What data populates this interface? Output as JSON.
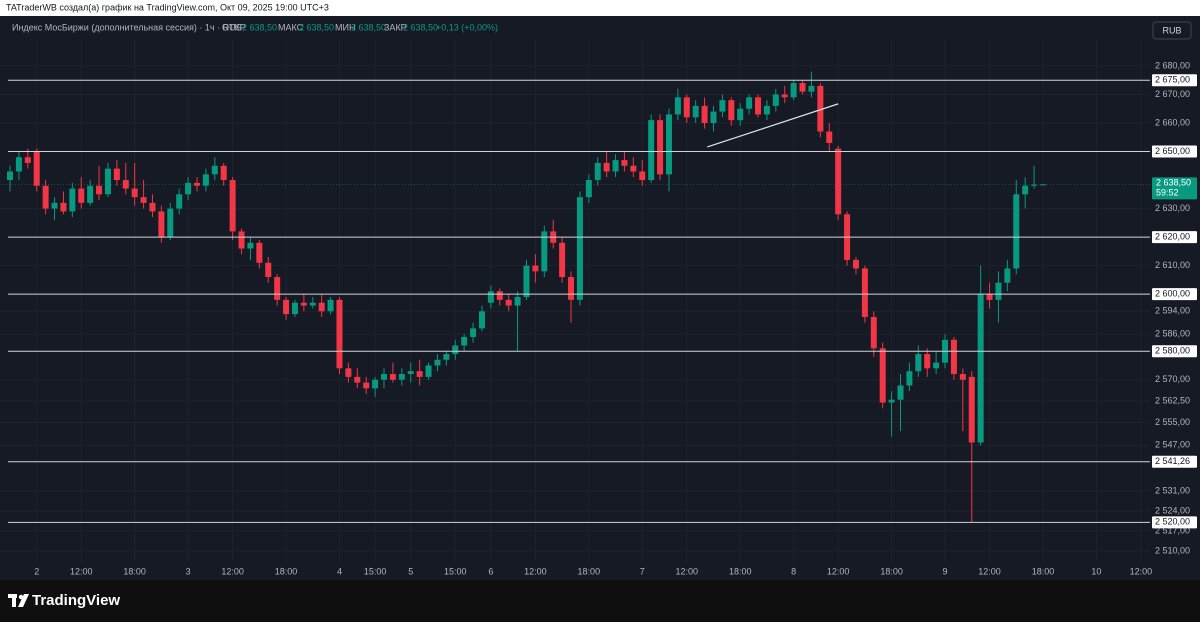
{
  "topbar": "TATraderWB создал(а) график на TradingView.com, Окт 09, 2025 19:00 UTC+3",
  "header": {
    "symbol": "Индекс МосБиржи (дополнительная сессия) · 1ч · RUS",
    "open_label": "ОТКР",
    "open": "2 638,50",
    "high_label": "МАКС",
    "high": "2 638,50",
    "low_label": "МИН",
    "low": "2 638,50",
    "close_label": "ЗАКР",
    "close": "2 638,50",
    "change": "+0,13 (+0,00%)"
  },
  "currency": "RUB",
  "footer": {
    "brand": "TradingView"
  },
  "chart_data": {
    "type": "candlestick",
    "categories": [
      null,
      null,
      null,
      "2",
      null,
      null,
      null,
      null,
      "12:00",
      null,
      null,
      null,
      null,
      null,
      "18:00",
      null,
      null,
      null,
      null,
      null,
      "3",
      null,
      null,
      null,
      null,
      "12:00",
      null,
      null,
      null,
      null,
      null,
      "18:00",
      null,
      null,
      null,
      null,
      null,
      "4",
      null,
      null,
      null,
      "15:00",
      null,
      null,
      null,
      "5",
      null,
      null,
      null,
      null,
      "15:00",
      null,
      null,
      null,
      "6",
      null,
      null,
      null,
      null,
      "12:00",
      null,
      null,
      null,
      null,
      null,
      "18:00",
      null,
      null,
      null,
      null,
      null,
      "7",
      null,
      null,
      null,
      null,
      "12:00",
      null,
      null,
      null,
      null,
      null,
      "18:00",
      null,
      null,
      null,
      null,
      null,
      "8",
      null,
      null,
      null,
      null,
      "12:00",
      null,
      null,
      null,
      null,
      null,
      "18:00",
      null,
      null,
      null,
      null,
      null,
      "9",
      null,
      null,
      null,
      null,
      "12:00",
      null,
      null,
      null,
      null,
      null,
      "18:00",
      null,
      null,
      null,
      null,
      null,
      "10",
      null,
      null,
      null,
      null,
      "12:00"
    ],
    "open": [
      2640,
      2643,
      2648,
      2650,
      2638,
      2630,
      2632,
      2629,
      2637,
      2632,
      2638,
      2635,
      2644,
      2640,
      2637,
      2634,
      2632,
      2629,
      2620,
      2630,
      2635,
      2639,
      2638,
      2642,
      2645,
      2640,
      2622,
      2616,
      2618,
      2611,
      2606,
      2598,
      2593,
      2597,
      2596,
      2597,
      2594,
      2598,
      2574,
      2571,
      2569,
      2567,
      2570,
      2572,
      2570,
      2572,
      2573,
      2571,
      2575,
      2577,
      2579,
      2582,
      2585,
      2588,
      2597,
      2601,
      2598,
      2596,
      2599,
      2610,
      2608,
      2622,
      2618,
      2606,
      2598,
      2634,
      2640,
      2646,
      2643,
      2647,
      2645,
      2643,
      2640,
      2661,
      2642,
      2663,
      2669,
      2662,
      2666,
      2660,
      2664,
      2668,
      2661,
      2665,
      2669,
      2663,
      2666,
      2670,
      2669,
      2674,
      2671,
      2673,
      2657,
      2651,
      2628,
      2612,
      2609,
      2592,
      2581,
      2562,
      2563,
      2568,
      2573,
      2579,
      2574,
      2576,
      2584,
      2572,
      2571,
      2548,
      2600,
      2598,
      2604,
      2609,
      2635,
      2638,
      2638.5,
      null,
      null,
      null,
      null,
      null,
      null,
      null,
      null,
      null,
      null,
      null
    ],
    "high": [
      2645,
      2650,
      2651,
      2651,
      2640,
      2634,
      2636,
      2639,
      2641,
      2640,
      2645,
      2646,
      2647,
      2646,
      2646,
      2640,
      2635,
      2631,
      2632,
      2637,
      2641,
      2641,
      2644,
      2648,
      2646,
      2641,
      2623,
      2620,
      2619,
      2613,
      2607,
      2599,
      2598,
      2600,
      2599,
      2600,
      2599,
      2599,
      2576,
      2574,
      2571,
      2571,
      2574,
      2576,
      2574,
      2576,
      2577,
      2576,
      2579,
      2580,
      2584,
      2586,
      2590,
      2596,
      2603,
      2602,
      2600,
      2601,
      2612,
      2614,
      2624,
      2626,
      2620,
      2608,
      2636,
      2642,
      2648,
      2650,
      2649,
      2650,
      2648,
      2647,
      2663,
      2663,
      2665,
      2672,
      2670,
      2668,
      2669,
      2666,
      2670,
      2669,
      2667,
      2670,
      2670,
      2668,
      2672,
      2673,
      2675,
      2675,
      2678,
      2674,
      2660,
      2652,
      2629,
      2613,
      2610,
      2594,
      2583,
      2566,
      2572,
      2576,
      2582,
      2581,
      2580,
      2586,
      2585,
      2574,
      2573,
      2610,
      2604,
      2608,
      2612,
      2640,
      2641,
      2645,
      2638.5,
      null,
      null,
      null,
      null,
      null,
      null,
      null,
      null,
      null,
      null,
      null
    ],
    "low": [
      2636,
      2640,
      2644,
      2636,
      2628,
      2626,
      2628,
      2627,
      2630,
      2631,
      2633,
      2634,
      2638,
      2635,
      2631,
      2630,
      2627,
      2618,
      2619,
      2628,
      2633,
      2636,
      2636,
      2640,
      2638,
      2619,
      2614,
      2612,
      2609,
      2604,
      2596,
      2591,
      2592,
      2594,
      2595,
      2592,
      2593,
      2572,
      2569,
      2567,
      2565,
      2564,
      2567,
      2569,
      2568,
      2569,
      2568,
      2570,
      2573,
      2575,
      2577,
      2580,
      2583,
      2587,
      2595,
      2596,
      2594,
      2580,
      2598,
      2604,
      2606,
      2616,
      2604,
      2590,
      2596,
      2632,
      2638,
      2641,
      2641,
      2643,
      2641,
      2638,
      2639,
      2640,
      2636,
      2661,
      2660,
      2660,
      2658,
      2657,
      2662,
      2659,
      2659,
      2663,
      2662,
      2661,
      2664,
      2667,
      2668,
      2670,
      2669,
      2655,
      2650,
      2626,
      2610,
      2607,
      2590,
      2578,
      2560,
      2550,
      2552,
      2566,
      2571,
      2571,
      2572,
      2574,
      2570,
      2552,
      2520,
      2547,
      2595,
      2590,
      2601,
      2607,
      2630,
      2637,
      2638.5,
      null,
      null,
      null,
      null,
      null,
      null,
      null,
      null,
      null,
      null,
      null
    ],
    "close": [
      2643,
      2648,
      2646,
      2638,
      2630,
      2632,
      2629,
      2637,
      2632,
      2638,
      2635,
      2644,
      2640,
      2637,
      2634,
      2632,
      2629,
      2620,
      2630,
      2635,
      2639,
      2638,
      2642,
      2645,
      2640,
      2622,
      2616,
      2618,
      2611,
      2606,
      2598,
      2593,
      2597,
      2596,
      2597,
      2594,
      2598,
      2574,
      2571,
      2569,
      2567,
      2570,
      2572,
      2570,
      2572,
      2573,
      2571,
      2575,
      2577,
      2579,
      2582,
      2585,
      2588,
      2594,
      2601,
      2598,
      2596,
      2599,
      2610,
      2608,
      2622,
      2618,
      2606,
      2598,
      2634,
      2640,
      2646,
      2643,
      2647,
      2645,
      2643,
      2640,
      2661,
      2642,
      2663,
      2669,
      2662,
      2666,
      2660,
      2664,
      2668,
      2661,
      2665,
      2669,
      2663,
      2666,
      2670,
      2669,
      2674,
      2671,
      2673,
      2657,
      2653,
      2628,
      2612,
      2609,
      2592,
      2581,
      2562,
      2563,
      2568,
      2573,
      2579,
      2574,
      2576,
      2584,
      2572,
      2570,
      2548,
      2600,
      2598,
      2604,
      2609,
      2635,
      2638,
      2638.37,
      2638.5,
      null,
      null,
      null,
      null,
      null,
      null,
      null,
      null,
      null,
      null,
      null
    ],
    "up_color": "#089981",
    "down_color": "#f23645",
    "ylim": [
      2500.5,
      2696.1
    ],
    "yticks": [
      {
        "value": 2680,
        "label": "2 680,00"
      },
      {
        "value": 2670,
        "label": "2 670,00"
      },
      {
        "value": 2660,
        "label": "2 660,00"
      },
      {
        "value": 2630,
        "label": "2 630,00"
      },
      {
        "value": 2610,
        "label": "2 610,00"
      },
      {
        "value": 2594,
        "label": "2 594,00"
      },
      {
        "value": 2586,
        "label": "2 586,00"
      },
      {
        "value": 2570,
        "label": "2 570,00"
      },
      {
        "value": 2562.5,
        "label": "2 562,50"
      },
      {
        "value": 2555,
        "label": "2 555,00"
      },
      {
        "value": 2547,
        "label": "2 547,00"
      },
      {
        "value": 2531,
        "label": "2 531,00"
      },
      {
        "value": 2524,
        "label": "2 524,00"
      },
      {
        "value": 2517,
        "label": "2 517,00"
      },
      {
        "value": 2510,
        "label": "2 510,00"
      }
    ],
    "grid": true,
    "levels": [
      {
        "value": 2675,
        "label": "2 675,00"
      },
      {
        "value": 2650,
        "label": "2 650,00"
      },
      {
        "value": 2620,
        "label": "2 620,00"
      },
      {
        "value": 2600,
        "label": "2 600,00"
      },
      {
        "value": 2580,
        "label": "2 580,00"
      },
      {
        "value": 2541.26,
        "label": "2 541,26"
      },
      {
        "value": 2520,
        "label": "2 520,00"
      }
    ],
    "last_price": {
      "value": 2638.5,
      "label": "2 638,50"
    },
    "countdown": "59:52",
    "trendline": {
      "x": [
        78.3,
        93
      ],
      "y": [
        2651.6,
        2666.7
      ]
    }
  }
}
